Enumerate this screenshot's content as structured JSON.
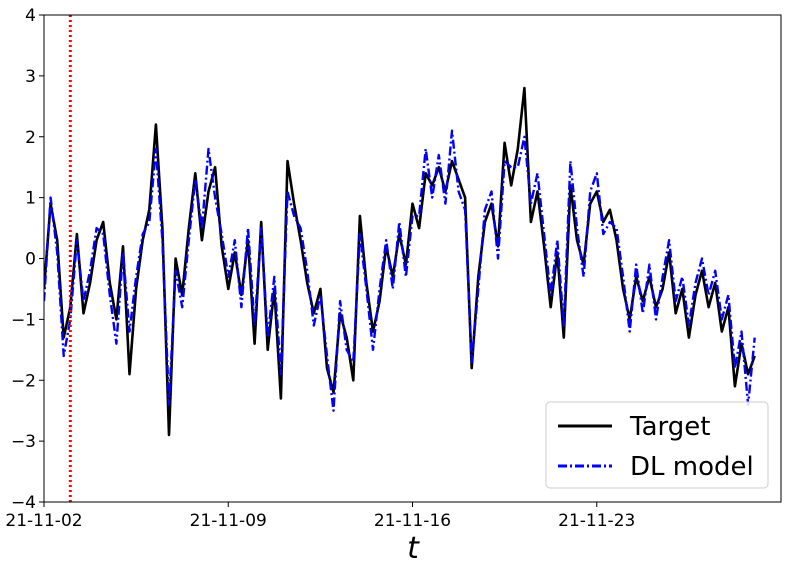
{
  "chart_data": {
    "type": "line",
    "title": "",
    "xlabel": "t",
    "ylabel": "",
    "x_tick_labels": [
      "21-11-02",
      "21-11-09",
      "21-11-16",
      "21-11-23"
    ],
    "y_tick_labels": [
      "−4",
      "−3",
      "−2",
      "−1",
      "0",
      "1",
      "2",
      "3",
      "4"
    ],
    "ylim": [
      -4,
      4
    ],
    "xlim": [
      "2021-11-02",
      "2021-11-30"
    ],
    "grid": false,
    "legend_position": "lower-right",
    "vline": {
      "x": "2021-11-03",
      "color": "#ff0000",
      "style": "dotted"
    },
    "series": [
      {
        "name": "Target",
        "color": "#000000",
        "style": "solid",
        "points": [
          [
            "2021-11-02",
            -0.5
          ],
          [
            "2021-11-02 06:00",
            0.9
          ],
          [
            "2021-11-02 12:00",
            0.3
          ],
          [
            "2021-11-02 18:00",
            -1.3
          ],
          [
            "2021-11-03",
            -0.8
          ],
          [
            "2021-11-03 06:00",
            0.4
          ],
          [
            "2021-11-03 12:00",
            -0.9
          ],
          [
            "2021-11-03 18:00",
            -0.4
          ],
          [
            "2021-11-04",
            0.3
          ],
          [
            "2021-11-04 06:00",
            0.6
          ],
          [
            "2021-11-04 12:00",
            -0.4
          ],
          [
            "2021-11-04 18:00",
            -1.0
          ],
          [
            "2021-11-05",
            0.2
          ],
          [
            "2021-11-05 06:00",
            -1.9
          ],
          [
            "2021-11-05 12:00",
            -0.5
          ],
          [
            "2021-11-05 18:00",
            0.3
          ],
          [
            "2021-11-06",
            0.8
          ],
          [
            "2021-11-06 06:00",
            2.2
          ],
          [
            "2021-11-06 12:00",
            0.5
          ],
          [
            "2021-11-06 18:00",
            -2.9
          ],
          [
            "2021-11-07",
            0.0
          ],
          [
            "2021-11-07 06:00",
            -0.6
          ],
          [
            "2021-11-07 12:00",
            0.5
          ],
          [
            "2021-11-07 18:00",
            1.4
          ],
          [
            "2021-11-08",
            0.3
          ],
          [
            "2021-11-08 06:00",
            1.1
          ],
          [
            "2021-11-08 12:00",
            1.5
          ],
          [
            "2021-11-08 18:00",
            0.2
          ],
          [
            "2021-11-09",
            -0.5
          ],
          [
            "2021-11-09 06:00",
            0.1
          ],
          [
            "2021-11-09 12:00",
            -0.6
          ],
          [
            "2021-11-09 18:00",
            0.3
          ],
          [
            "2021-11-10",
            -1.4
          ],
          [
            "2021-11-10 06:00",
            0.6
          ],
          [
            "2021-11-10 12:00",
            -1.5
          ],
          [
            "2021-11-10 18:00",
            -0.5
          ],
          [
            "2021-11-11",
            -2.3
          ],
          [
            "2021-11-11 06:00",
            1.6
          ],
          [
            "2021-11-11 12:00",
            0.9
          ],
          [
            "2021-11-11 18:00",
            0.3
          ],
          [
            "2021-11-12",
            -0.4
          ],
          [
            "2021-11-12 06:00",
            -0.9
          ],
          [
            "2021-11-12 12:00",
            -0.5
          ],
          [
            "2021-11-12 18:00",
            -1.8
          ],
          [
            "2021-11-13",
            -2.2
          ],
          [
            "2021-11-13 06:00",
            -0.9
          ],
          [
            "2021-11-13 12:00",
            -1.3
          ],
          [
            "2021-11-13 18:00",
            -2.0
          ],
          [
            "2021-11-14",
            0.7
          ],
          [
            "2021-11-14 06:00",
            -0.4
          ],
          [
            "2021-11-14 12:00",
            -1.2
          ],
          [
            "2021-11-14 18:00",
            -0.7
          ],
          [
            "2021-11-15",
            0.2
          ],
          [
            "2021-11-15 06:00",
            -0.3
          ],
          [
            "2021-11-15 12:00",
            0.4
          ],
          [
            "2021-11-15 18:00",
            -0.1
          ],
          [
            "2021-11-16",
            0.9
          ],
          [
            "2021-11-16 06:00",
            0.5
          ],
          [
            "2021-11-16 12:00",
            1.4
          ],
          [
            "2021-11-16 18:00",
            1.2
          ],
          [
            "2021-11-17",
            1.5
          ],
          [
            "2021-11-17 06:00",
            1.1
          ],
          [
            "2021-11-17 12:00",
            1.6
          ],
          [
            "2021-11-17 18:00",
            1.3
          ],
          [
            "2021-11-18",
            1.0
          ],
          [
            "2021-11-18 06:00",
            -1.8
          ],
          [
            "2021-11-18 12:00",
            -0.3
          ],
          [
            "2021-11-18 18:00",
            0.6
          ],
          [
            "2021-11-19",
            0.9
          ],
          [
            "2021-11-19 06:00",
            0.2
          ],
          [
            "2021-11-19 12:00",
            1.9
          ],
          [
            "2021-11-19 18:00",
            1.2
          ],
          [
            "2021-11-20",
            1.8
          ],
          [
            "2021-11-20 06:00",
            2.8
          ],
          [
            "2021-11-20 12:00",
            0.6
          ],
          [
            "2021-11-20 18:00",
            1.1
          ],
          [
            "2021-11-21",
            0.2
          ],
          [
            "2021-11-21 06:00",
            -0.8
          ],
          [
            "2021-11-21 12:00",
            0.1
          ],
          [
            "2021-11-21 18:00",
            -1.3
          ],
          [
            "2021-11-22",
            1.2
          ],
          [
            "2021-11-22 06:00",
            0.3
          ],
          [
            "2021-11-22 12:00",
            -0.1
          ],
          [
            "2021-11-22 18:00",
            0.9
          ],
          [
            "2021-11-23",
            1.1
          ],
          [
            "2021-11-23 06:00",
            0.6
          ],
          [
            "2021-11-23 12:00",
            0.8
          ],
          [
            "2021-11-23 18:00",
            0.3
          ],
          [
            "2021-11-24",
            -0.5
          ],
          [
            "2021-11-24 06:00",
            -1.0
          ],
          [
            "2021-11-24 12:00",
            -0.3
          ],
          [
            "2021-11-24 18:00",
            -0.7
          ],
          [
            "2021-11-25",
            -0.3
          ],
          [
            "2021-11-25 06:00",
            -0.8
          ],
          [
            "2021-11-25 12:00",
            -0.5
          ],
          [
            "2021-11-25 18:00",
            0.1
          ],
          [
            "2021-11-26",
            -0.9
          ],
          [
            "2021-11-26 06:00",
            -0.5
          ],
          [
            "2021-11-26 12:00",
            -1.3
          ],
          [
            "2021-11-26 18:00",
            -0.6
          ],
          [
            "2021-11-27",
            -0.2
          ],
          [
            "2021-11-27 06:00",
            -0.8
          ],
          [
            "2021-11-27 12:00",
            -0.4
          ],
          [
            "2021-11-27 18:00",
            -1.2
          ],
          [
            "2021-11-28",
            -0.8
          ],
          [
            "2021-11-28 06:00",
            -2.1
          ],
          [
            "2021-11-28 12:00",
            -1.4
          ],
          [
            "2021-11-28 18:00",
            -1.9
          ],
          [
            "2021-11-29",
            -1.6
          ]
        ]
      },
      {
        "name": "DL model",
        "color": "#0000ff",
        "style": "dashdot",
        "points": [
          [
            "2021-11-02",
            -0.7
          ],
          [
            "2021-11-02 06:00",
            1.0
          ],
          [
            "2021-11-02 12:00",
            0.1
          ],
          [
            "2021-11-02 18:00",
            -1.6
          ],
          [
            "2021-11-03",
            -1.0
          ],
          [
            "2021-11-03 06:00",
            0.3
          ],
          [
            "2021-11-03 12:00",
            -0.7
          ],
          [
            "2021-11-03 18:00",
            -0.2
          ],
          [
            "2021-11-04",
            0.5
          ],
          [
            "2021-11-04 06:00",
            0.4
          ],
          [
            "2021-11-04 12:00",
            -0.6
          ],
          [
            "2021-11-04 18:00",
            -1.4
          ],
          [
            "2021-11-05",
            0.1
          ],
          [
            "2021-11-05 06:00",
            -1.2
          ],
          [
            "2021-11-05 12:00",
            -0.3
          ],
          [
            "2021-11-05 18:00",
            0.4
          ],
          [
            "2021-11-06",
            0.6
          ],
          [
            "2021-11-06 06:00",
            1.8
          ],
          [
            "2021-11-06 12:00",
            0.3
          ],
          [
            "2021-11-06 18:00",
            -2.4
          ],
          [
            "2021-11-07",
            -0.2
          ],
          [
            "2021-11-07 06:00",
            -0.8
          ],
          [
            "2021-11-07 12:00",
            0.3
          ],
          [
            "2021-11-07 18:00",
            1.3
          ],
          [
            "2021-11-08",
            0.5
          ],
          [
            "2021-11-08 06:00",
            1.8
          ],
          [
            "2021-11-08 12:00",
            1.0
          ],
          [
            "2021-11-08 18:00",
            0.4
          ],
          [
            "2021-11-09",
            -0.3
          ],
          [
            "2021-11-09 06:00",
            0.3
          ],
          [
            "2021-11-09 12:00",
            -0.8
          ],
          [
            "2021-11-09 18:00",
            0.5
          ],
          [
            "2021-11-10",
            -1.1
          ],
          [
            "2021-11-10 06:00",
            0.5
          ],
          [
            "2021-11-10 12:00",
            -1.3
          ],
          [
            "2021-11-10 18:00",
            -0.3
          ],
          [
            "2021-11-11",
            -1.9
          ],
          [
            "2021-11-11 06:00",
            1.1
          ],
          [
            "2021-11-11 12:00",
            0.7
          ],
          [
            "2021-11-11 18:00",
            0.5
          ],
          [
            "2021-11-12",
            -0.2
          ],
          [
            "2021-11-12 06:00",
            -1.1
          ],
          [
            "2021-11-12 12:00",
            -0.6
          ],
          [
            "2021-11-12 18:00",
            -1.6
          ],
          [
            "2021-11-13",
            -2.5
          ],
          [
            "2021-11-13 06:00",
            -0.7
          ],
          [
            "2021-11-13 12:00",
            -1.5
          ],
          [
            "2021-11-13 18:00",
            -1.7
          ],
          [
            "2021-11-14",
            0.4
          ],
          [
            "2021-11-14 06:00",
            -0.5
          ],
          [
            "2021-11-14 12:00",
            -1.5
          ],
          [
            "2021-11-14 18:00",
            -0.5
          ],
          [
            "2021-11-15",
            0.3
          ],
          [
            "2021-11-15 06:00",
            -0.5
          ],
          [
            "2021-11-15 12:00",
            0.6
          ],
          [
            "2021-11-15 18:00",
            -0.3
          ],
          [
            "2021-11-16",
            0.7
          ],
          [
            "2021-11-16 06:00",
            0.7
          ],
          [
            "2021-11-16 12:00",
            1.8
          ],
          [
            "2021-11-16 18:00",
            1.0
          ],
          [
            "2021-11-17",
            1.7
          ],
          [
            "2021-11-17 06:00",
            0.9
          ],
          [
            "2021-11-17 12:00",
            2.1
          ],
          [
            "2021-11-17 18:00",
            1.1
          ],
          [
            "2021-11-18",
            0.8
          ],
          [
            "2021-11-18 06:00",
            -1.7
          ],
          [
            "2021-11-18 12:00",
            -0.5
          ],
          [
            "2021-11-18 18:00",
            0.8
          ],
          [
            "2021-11-19",
            1.1
          ],
          [
            "2021-11-19 06:00",
            0.0
          ],
          [
            "2021-11-19 12:00",
            1.6
          ],
          [
            "2021-11-19 18:00",
            1.5
          ],
          [
            "2021-11-20",
            1.5
          ],
          [
            "2021-11-20 06:00",
            2.0
          ],
          [
            "2021-11-20 12:00",
            0.9
          ],
          [
            "2021-11-20 18:00",
            1.4
          ],
          [
            "2021-11-21",
            0.4
          ],
          [
            "2021-11-21 06:00",
            -0.6
          ],
          [
            "2021-11-21 12:00",
            0.3
          ],
          [
            "2021-11-21 18:00",
            -1.1
          ],
          [
            "2021-11-22",
            1.6
          ],
          [
            "2021-11-22 06:00",
            0.5
          ],
          [
            "2021-11-22 12:00",
            -0.3
          ],
          [
            "2021-11-22 18:00",
            1.1
          ],
          [
            "2021-11-23",
            1.4
          ],
          [
            "2021-11-23 06:00",
            0.4
          ],
          [
            "2021-11-23 12:00",
            0.6
          ],
          [
            "2021-11-23 18:00",
            0.5
          ],
          [
            "2021-11-24",
            -0.3
          ],
          [
            "2021-11-24 06:00",
            -1.2
          ],
          [
            "2021-11-24 12:00",
            -0.1
          ],
          [
            "2021-11-24 18:00",
            -0.9
          ],
          [
            "2021-11-25",
            -0.1
          ],
          [
            "2021-11-25 06:00",
            -1.0
          ],
          [
            "2021-11-25 12:00",
            -0.3
          ],
          [
            "2021-11-25 18:00",
            0.3
          ],
          [
            "2021-11-26",
            -0.7
          ],
          [
            "2021-11-26 06:00",
            -0.3
          ],
          [
            "2021-11-26 12:00",
            -1.1
          ],
          [
            "2021-11-26 18:00",
            -0.4
          ],
          [
            "2021-11-27",
            0.0
          ],
          [
            "2021-11-27 06:00",
            -0.6
          ],
          [
            "2021-11-27 12:00",
            -0.2
          ],
          [
            "2021-11-27 18:00",
            -1.0
          ],
          [
            "2021-11-28",
            -0.6
          ],
          [
            "2021-11-28 06:00",
            -1.8
          ],
          [
            "2021-11-28 12:00",
            -1.2
          ],
          [
            "2021-11-28 18:00",
            -2.4
          ],
          [
            "2021-11-29",
            -1.3
          ]
        ]
      }
    ]
  }
}
